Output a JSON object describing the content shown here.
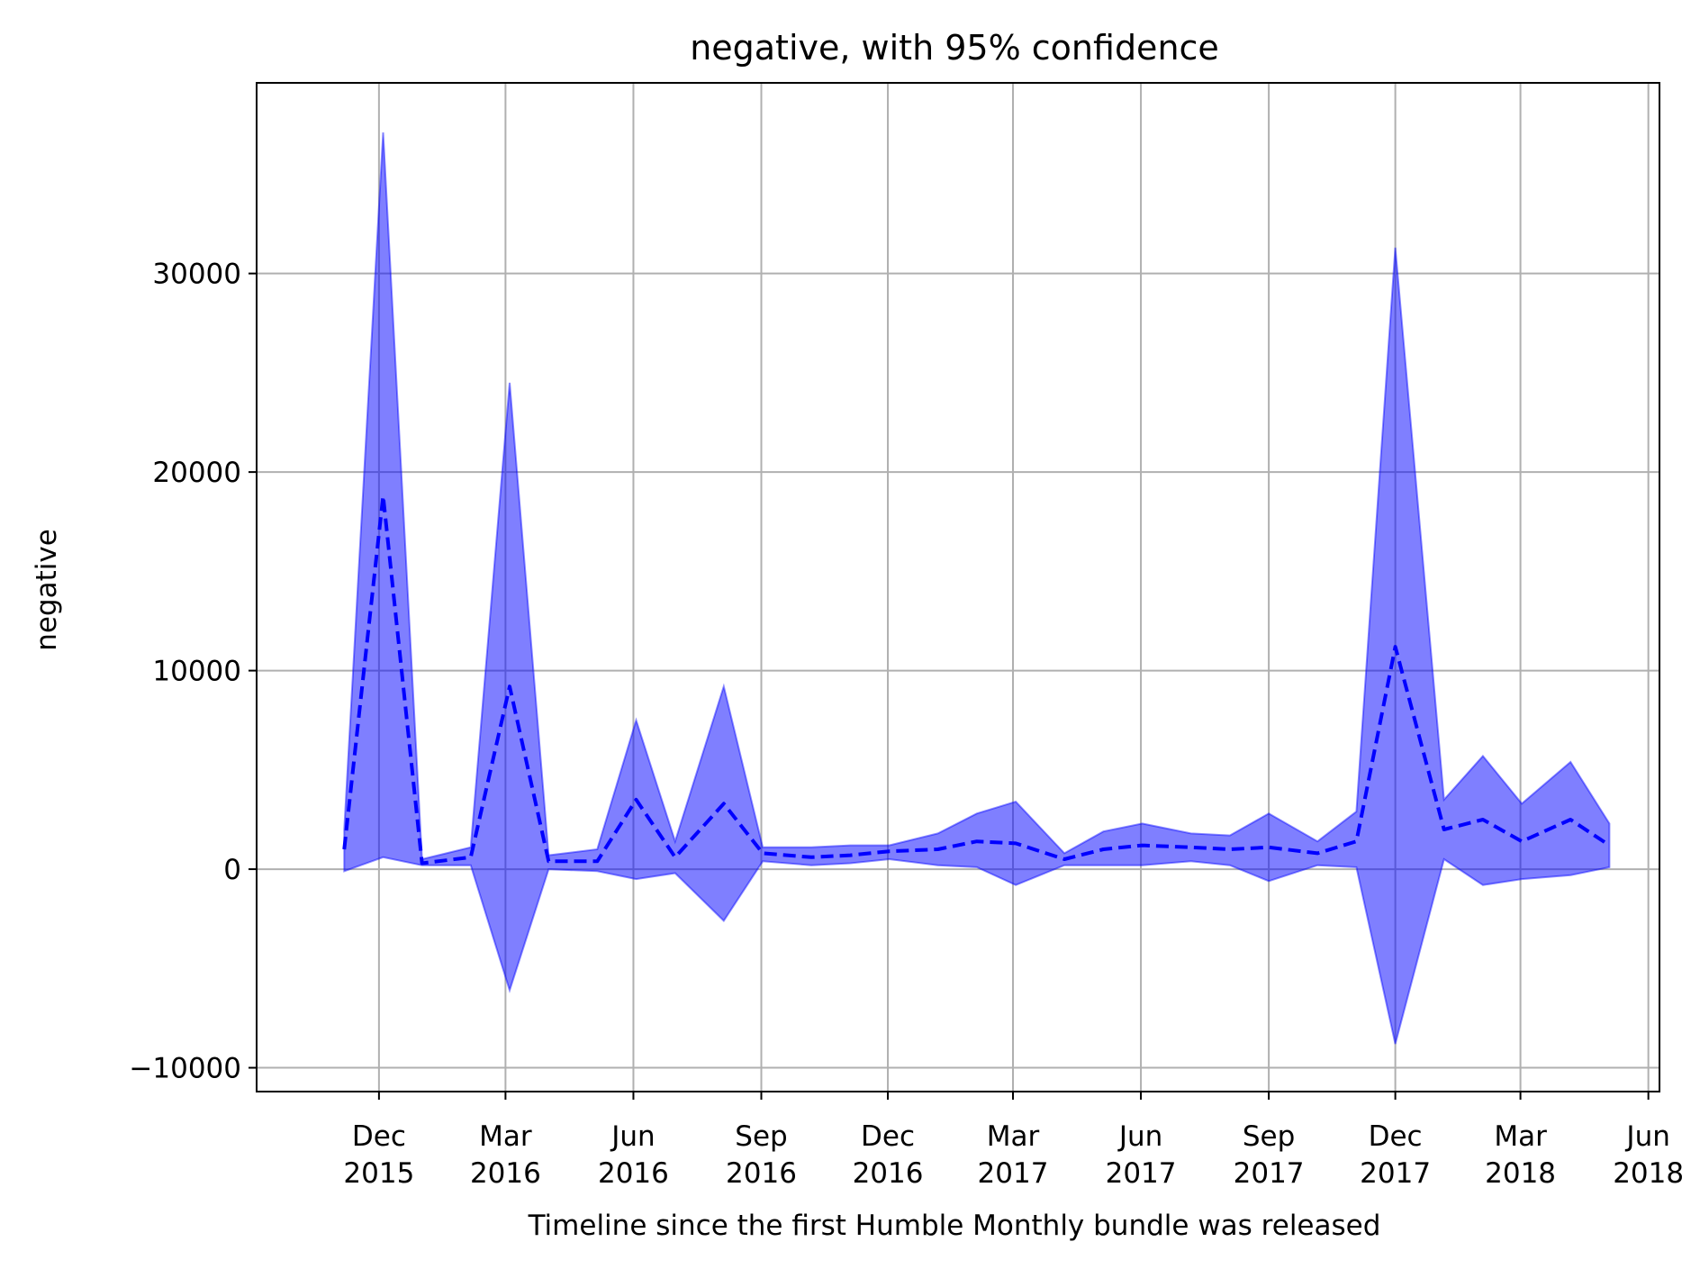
{
  "chart_data": {
    "type": "line",
    "title": "negative, with 95% confidence",
    "xlabel": "Timeline since the first Humble Monthly bundle was released",
    "ylabel": "negative",
    "x_ticks": [
      {
        "date": "2015-12-01",
        "month": "Dec",
        "year": "2015"
      },
      {
        "date": "2016-03-01",
        "month": "Mar",
        "year": "2016"
      },
      {
        "date": "2016-06-01",
        "month": "Jun",
        "year": "2016"
      },
      {
        "date": "2016-09-01",
        "month": "Sep",
        "year": "2016"
      },
      {
        "date": "2016-12-01",
        "month": "Dec",
        "year": "2016"
      },
      {
        "date": "2017-03-01",
        "month": "Mar",
        "year": "2017"
      },
      {
        "date": "2017-06-01",
        "month": "Jun",
        "year": "2017"
      },
      {
        "date": "2017-09-01",
        "month": "Sep",
        "year": "2017"
      },
      {
        "date": "2017-12-01",
        "month": "Dec",
        "year": "2017"
      },
      {
        "date": "2018-03-01",
        "month": "Mar",
        "year": "2018"
      },
      {
        "date": "2018-06-01",
        "month": "Jun",
        "year": "2018"
      }
    ],
    "y_ticks": [
      "30000",
      "20000",
      "10000",
      "0",
      "−10000"
    ],
    "y_tick_values": [
      30000,
      20000,
      10000,
      0,
      -10000
    ],
    "xlim": [
      "2015-09-04",
      "2018-06-09"
    ],
    "ylim": [
      -11200,
      39600
    ],
    "grid": true,
    "series": [
      {
        "style": "dashed",
        "color": "#0000ff",
        "band_color": "#0000ff",
        "band_opacity": 0.5,
        "points": [
          {
            "x": "2015-11-06",
            "y": 1000,
            "lower": -100,
            "upper": 2000
          },
          {
            "x": "2015-12-04",
            "y": 18800,
            "lower": 600,
            "upper": 37100
          },
          {
            "x": "2016-01-01",
            "y": 300,
            "lower": 200,
            "upper": 500
          },
          {
            "x": "2016-02-05",
            "y": 600,
            "lower": 200,
            "upper": 1100
          },
          {
            "x": "2016-03-04",
            "y": 9200,
            "lower": -6100,
            "upper": 24500
          },
          {
            "x": "2016-04-01",
            "y": 400,
            "lower": 0,
            "upper": 700
          },
          {
            "x": "2016-05-06",
            "y": 400,
            "lower": -100,
            "upper": 1000
          },
          {
            "x": "2016-06-03",
            "y": 3500,
            "lower": -500,
            "upper": 7500
          },
          {
            "x": "2016-07-01",
            "y": 600,
            "lower": -200,
            "upper": 1400
          },
          {
            "x": "2016-08-05",
            "y": 3300,
            "lower": -2600,
            "upper": 9200
          },
          {
            "x": "2016-09-02",
            "y": 800,
            "lower": 400,
            "upper": 1100
          },
          {
            "x": "2016-10-07",
            "y": 600,
            "lower": 200,
            "upper": 1100
          },
          {
            "x": "2016-11-04",
            "y": 700,
            "lower": 300,
            "upper": 1200
          },
          {
            "x": "2016-12-02",
            "y": 900,
            "lower": 500,
            "upper": 1200
          },
          {
            "x": "2017-01-06",
            "y": 1000,
            "lower": 200,
            "upper": 1800
          },
          {
            "x": "2017-02-03",
            "y": 1400,
            "lower": 100,
            "upper": 2800
          },
          {
            "x": "2017-03-03",
            "y": 1300,
            "lower": -800,
            "upper": 3400
          },
          {
            "x": "2017-04-07",
            "y": 500,
            "lower": 200,
            "upper": 800
          },
          {
            "x": "2017-05-05",
            "y": 1000,
            "lower": 200,
            "upper": 1900
          },
          {
            "x": "2017-06-02",
            "y": 1200,
            "lower": 200,
            "upper": 2300
          },
          {
            "x": "2017-07-07",
            "y": 1100,
            "lower": 400,
            "upper": 1800
          },
          {
            "x": "2017-08-04",
            "y": 1000,
            "lower": 200,
            "upper": 1700
          },
          {
            "x": "2017-09-01",
            "y": 1100,
            "lower": -600,
            "upper": 2800
          },
          {
            "x": "2017-10-06",
            "y": 800,
            "lower": 200,
            "upper": 1400
          },
          {
            "x": "2017-11-03",
            "y": 1400,
            "lower": 100,
            "upper": 2900
          },
          {
            "x": "2017-12-01",
            "y": 11200,
            "lower": -8800,
            "upper": 31300
          },
          {
            "x": "2018-01-05",
            "y": 2000,
            "lower": 500,
            "upper": 3500
          },
          {
            "x": "2018-02-02",
            "y": 2500,
            "lower": -800,
            "upper": 5700
          },
          {
            "x": "2018-03-02",
            "y": 1400,
            "lower": -500,
            "upper": 3300
          },
          {
            "x": "2018-04-06",
            "y": 2500,
            "lower": -300,
            "upper": 5400
          },
          {
            "x": "2018-05-04",
            "y": 1200,
            "lower": 100,
            "upper": 2300
          }
        ]
      }
    ]
  }
}
